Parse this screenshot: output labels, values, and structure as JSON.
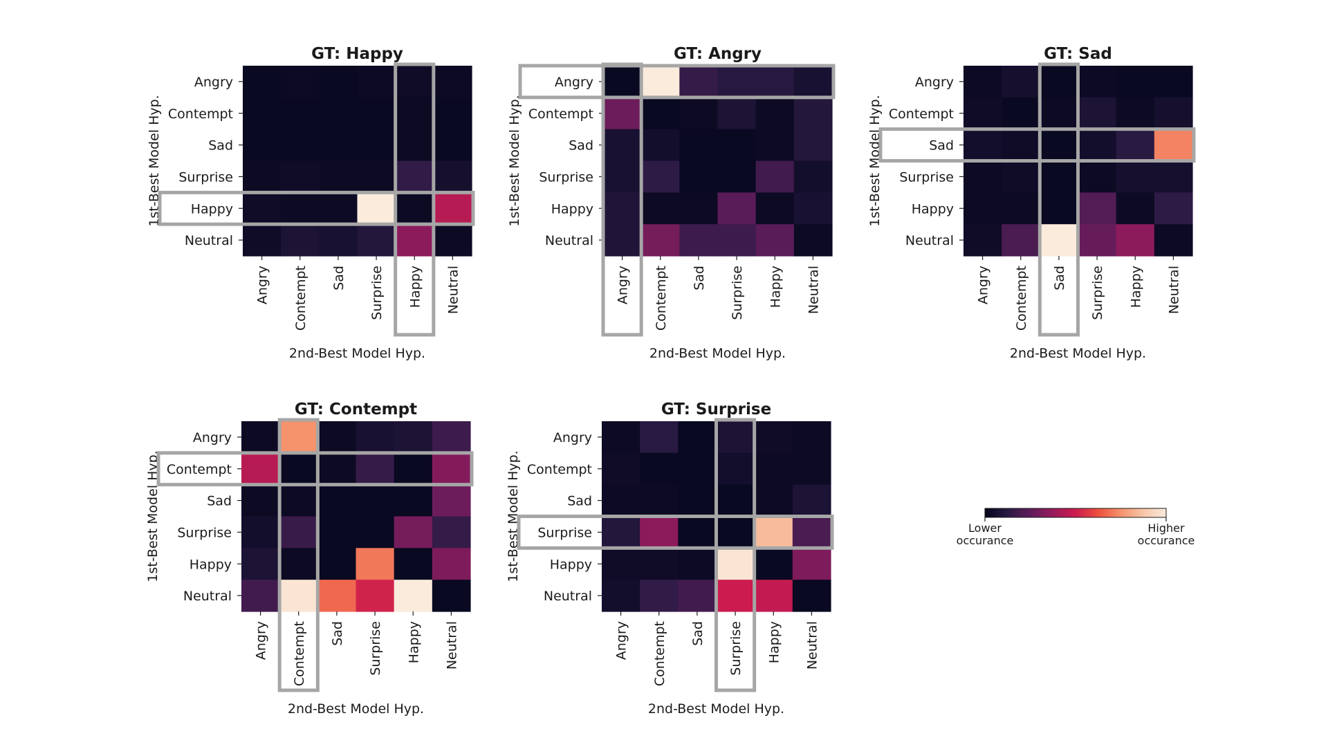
{
  "chart_data": [
    {
      "type": "heatmap",
      "title": "GT: Happy",
      "xlabel": "2nd-Best Model Hyp.",
      "ylabel": "1st-Best Model Hyp.",
      "rows": [
        "Angry",
        "Contempt",
        "Sad",
        "Surprise",
        "Happy",
        "Neutral"
      ],
      "cols": [
        "Angry",
        "Contempt",
        "Sad",
        "Surprise",
        "Happy",
        "Neutral"
      ],
      "values": [
        [
          0.02,
          0.03,
          0.02,
          0.03,
          0.04,
          0.03
        ],
        [
          0.02,
          0.02,
          0.02,
          0.02,
          0.03,
          0.02
        ],
        [
          0.02,
          0.02,
          0.02,
          0.02,
          0.03,
          0.02
        ],
        [
          0.03,
          0.04,
          0.03,
          0.03,
          0.14,
          0.06
        ],
        [
          0.04,
          0.03,
          0.03,
          1.0,
          0.03,
          0.45
        ],
        [
          0.04,
          0.08,
          0.07,
          0.1,
          0.35,
          0.03
        ]
      ],
      "highlight": {
        "row": "Happy",
        "col": "Happy"
      }
    },
    {
      "type": "heatmap",
      "title": "GT: Angry",
      "xlabel": "2nd-Best Model Hyp.",
      "ylabel": "1st-Best Model Hyp.",
      "rows": [
        "Angry",
        "Contempt",
        "Sad",
        "Surprise",
        "Happy",
        "Neutral"
      ],
      "cols": [
        "Angry",
        "Contempt",
        "Sad",
        "Surprise",
        "Happy",
        "Neutral"
      ],
      "values": [
        [
          0.02,
          1.0,
          0.15,
          0.11,
          0.11,
          0.07
        ],
        [
          0.28,
          0.02,
          0.03,
          0.08,
          0.03,
          0.1
        ],
        [
          0.07,
          0.05,
          0.02,
          0.02,
          0.03,
          0.1
        ],
        [
          0.07,
          0.13,
          0.02,
          0.02,
          0.18,
          0.05
        ],
        [
          0.09,
          0.03,
          0.03,
          0.24,
          0.03,
          0.07
        ],
        [
          0.09,
          0.3,
          0.17,
          0.17,
          0.24,
          0.03
        ]
      ],
      "highlight": {
        "row": "Angry",
        "col": "Angry"
      }
    },
    {
      "type": "heatmap",
      "title": "GT: Sad",
      "xlabel": "2nd-Best Model Hyp.",
      "ylabel": "1st-Best Model Hyp.",
      "rows": [
        "Angry",
        "Contempt",
        "Sad",
        "Surprise",
        "Happy",
        "Neutral"
      ],
      "cols": [
        "Angry",
        "Contempt",
        "Sad",
        "Surprise",
        "Happy",
        "Neutral"
      ],
      "values": [
        [
          0.03,
          0.06,
          0.02,
          0.03,
          0.02,
          0.02
        ],
        [
          0.04,
          0.02,
          0.03,
          0.08,
          0.03,
          0.06
        ],
        [
          0.05,
          0.04,
          0.02,
          0.05,
          0.12,
          0.72
        ],
        [
          0.03,
          0.04,
          0.02,
          0.03,
          0.06,
          0.06
        ],
        [
          0.03,
          0.03,
          0.02,
          0.22,
          0.03,
          0.13
        ],
        [
          0.04,
          0.2,
          1.0,
          0.27,
          0.35,
          0.03
        ]
      ],
      "highlight": {
        "row": "Sad",
        "col": "Sad"
      }
    },
    {
      "type": "heatmap",
      "title": "GT: Contempt",
      "xlabel": "2nd-Best Model Hyp.",
      "ylabel": "1st-Best Model Hyp.",
      "rows": [
        "Angry",
        "Contempt",
        "Sad",
        "Surprise",
        "Happy",
        "Neutral"
      ],
      "cols": [
        "Angry",
        "Contempt",
        "Sad",
        "Surprise",
        "Happy",
        "Neutral"
      ],
      "values": [
        [
          0.03,
          0.75,
          0.03,
          0.07,
          0.08,
          0.17
        ],
        [
          0.45,
          0.02,
          0.03,
          0.15,
          0.02,
          0.33
        ],
        [
          0.03,
          0.03,
          0.02,
          0.02,
          0.02,
          0.28
        ],
        [
          0.05,
          0.16,
          0.02,
          0.02,
          0.3,
          0.15
        ],
        [
          0.08,
          0.03,
          0.02,
          0.7,
          0.02,
          0.32
        ],
        [
          0.18,
          0.98,
          0.67,
          0.52,
          1.0,
          0.02
        ]
      ],
      "highlight": {
        "row": "Contempt",
        "col": "Contempt"
      }
    },
    {
      "type": "heatmap",
      "title": "GT: Surprise",
      "xlabel": "2nd-Best Model Hyp.",
      "ylabel": "1st-Best Model Hyp.",
      "rows": [
        "Angry",
        "Contempt",
        "Sad",
        "Surprise",
        "Happy",
        "Neutral"
      ],
      "cols": [
        "Angry",
        "Contempt",
        "Sad",
        "Surprise",
        "Happy",
        "Neutral"
      ],
      "values": [
        [
          0.03,
          0.12,
          0.02,
          0.08,
          0.04,
          0.03
        ],
        [
          0.04,
          0.02,
          0.02,
          0.05,
          0.03,
          0.03
        ],
        [
          0.03,
          0.03,
          0.02,
          0.02,
          0.03,
          0.08
        ],
        [
          0.1,
          0.35,
          0.02,
          0.02,
          0.85,
          0.2
        ],
        [
          0.04,
          0.04,
          0.03,
          0.98,
          0.02,
          0.32
        ],
        [
          0.05,
          0.14,
          0.18,
          0.5,
          0.48,
          0.02
        ]
      ],
      "highlight": {
        "row": "Surprise",
        "col": "Surprise"
      }
    }
  ],
  "colorbar": {
    "low_label": [
      "Lower",
      "occurance"
    ],
    "high_label": [
      "Higher",
      "occurance"
    ],
    "colormap": "rocket"
  },
  "colors": {
    "highlight_box": "#a6a6a6",
    "colormap_stops": [
      "#03051a",
      "#2b1b44",
      "#5e1c5a",
      "#981b5c",
      "#cb1b4f",
      "#ed503e",
      "#f5936d",
      "#f7c6a8",
      "#faebdd"
    ]
  }
}
